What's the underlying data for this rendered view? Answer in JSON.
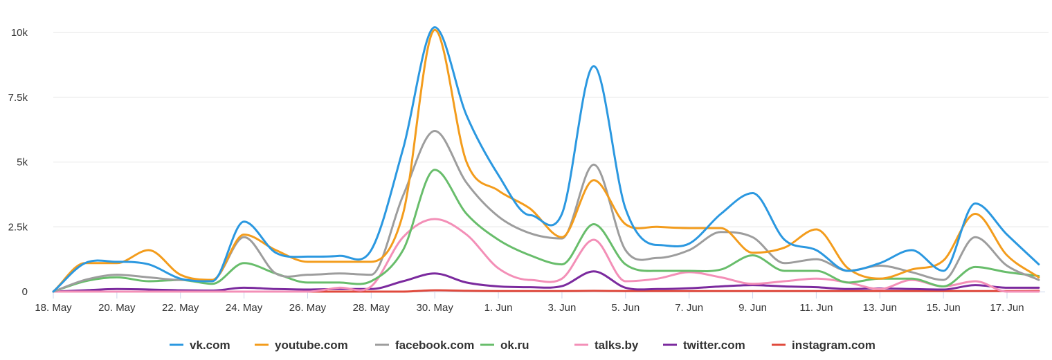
{
  "chart_data": {
    "type": "line",
    "title": "",
    "xlabel": "",
    "ylabel": "",
    "ylim": [
      0,
      10000
    ],
    "y_ticks": [
      {
        "value": 0,
        "label": "0"
      },
      {
        "value": 2500,
        "label": "2.5k"
      },
      {
        "value": 5000,
        "label": "5k"
      },
      {
        "value": 7500,
        "label": "7.5k"
      },
      {
        "value": 10000,
        "label": "10k"
      }
    ],
    "x": [
      "18. May",
      "19. May",
      "20. May",
      "21. May",
      "22. May",
      "23. May",
      "24. May",
      "25. May",
      "26. May",
      "27. May",
      "28. May",
      "29. May",
      "30. May",
      "31. May",
      "1. Jun",
      "2. Jun",
      "3. Jun",
      "4. Jun",
      "5. Jun",
      "6. Jun",
      "7. Jun",
      "8. Jun",
      "9. Jun",
      "10. Jun",
      "11. Jun",
      "12. Jun",
      "13. Jun",
      "14. Jun",
      "15. Jun",
      "16. Jun",
      "17. Jun",
      "18. Jun"
    ],
    "x_tick_labels": [
      "18. May",
      "20. May",
      "22. May",
      "24. May",
      "26. May",
      "28. May",
      "30. May",
      "1. Jun",
      "3. Jun",
      "5. Jun",
      "7. Jun",
      "9. Jun",
      "11. Jun",
      "13. Jun",
      "15. Jun",
      "17. Jun"
    ],
    "grid": true,
    "legend_position": "bottom",
    "series": [
      {
        "name": "vk.com",
        "color": "#2b98e0",
        "values": [
          0,
          1100,
          1150,
          1050,
          500,
          400,
          2700,
          1500,
          1350,
          1380,
          1600,
          5500,
          10200,
          6800,
          4500,
          2950,
          3000,
          8700,
          3200,
          1800,
          1850,
          3000,
          3800,
          2000,
          1600,
          800,
          1100,
          1600,
          800,
          3400,
          2200,
          1050
        ]
      },
      {
        "name": "youtube.com",
        "color": "#f39c1c",
        "values": [
          0,
          1100,
          1100,
          1600,
          650,
          450,
          2200,
          1600,
          1150,
          1150,
          1150,
          3000,
          10100,
          5000,
          3900,
          3200,
          2100,
          4300,
          2600,
          2500,
          2450,
          2450,
          1500,
          1700,
          2400,
          900,
          500,
          850,
          1200,
          3000,
          1400,
          550
        ]
      },
      {
        "name": "facebook.com",
        "color": "#9d9d9d",
        "values": [
          0,
          450,
          650,
          550,
          450,
          450,
          2100,
          700,
          650,
          700,
          650,
          3700,
          6200,
          4200,
          2900,
          2250,
          2050,
          4900,
          1600,
          1300,
          1600,
          2300,
          2100,
          1100,
          1250,
          800,
          1000,
          750,
          450,
          2100,
          1000,
          450
        ]
      },
      {
        "name": "ok.ru",
        "color": "#68bd6b",
        "values": [
          0,
          400,
          550,
          400,
          450,
          300,
          1100,
          700,
          350,
          350,
          400,
          1600,
          4700,
          3000,
          2000,
          1400,
          1050,
          2600,
          1050,
          800,
          800,
          850,
          1400,
          800,
          800,
          350,
          500,
          500,
          200,
          950,
          750,
          600
        ]
      },
      {
        "name": "talks.by",
        "color": "#f38fb7",
        "values": [
          0,
          0,
          0,
          0,
          0,
          0,
          0,
          0,
          0,
          150,
          200,
          2100,
          2800,
          2200,
          900,
          450,
          500,
          2000,
          400,
          500,
          750,
          550,
          300,
          400,
          500,
          350,
          100,
          450,
          200,
          400,
          0,
          0
        ]
      },
      {
        "name": "twitter.com",
        "color": "#7b2a9e",
        "values": [
          0,
          50,
          100,
          80,
          50,
          40,
          150,
          100,
          80,
          100,
          100,
          400,
          700,
          350,
          200,
          170,
          210,
          780,
          150,
          100,
          130,
          200,
          250,
          200,
          170,
          100,
          120,
          100,
          80,
          250,
          150,
          150
        ]
      },
      {
        "name": "instagram.com",
        "color": "#e04a3c",
        "values": [
          0,
          0,
          0,
          0,
          0,
          0,
          0,
          0,
          0,
          0,
          0,
          0,
          50,
          30,
          20,
          20,
          20,
          30,
          20,
          20,
          20,
          20,
          20,
          20,
          20,
          20,
          20,
          20,
          20,
          20,
          20,
          30
        ]
      }
    ]
  }
}
